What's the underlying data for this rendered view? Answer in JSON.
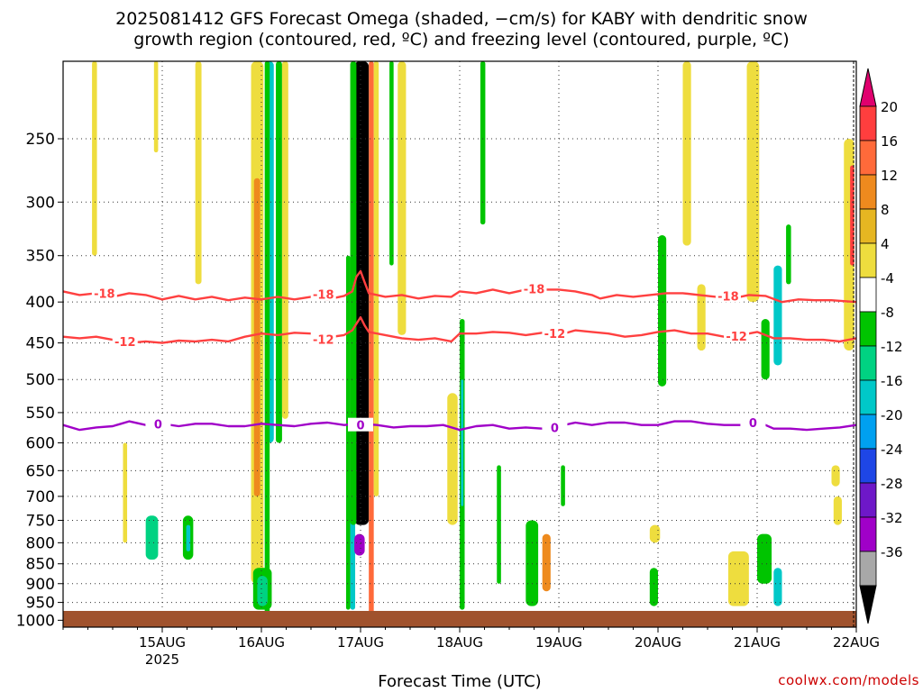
{
  "title_line1": "2025081412 GFS Forecast Omega (shaded, −cm/s) for KABY with dendritic snow",
  "title_line2": "growth region (contoured, red, ºC) and freezing level (contoured, purple, ºC)",
  "credit": "coolwx.com/models",
  "chart_data": {
    "type": "heatmap",
    "xlabel": "Forecast Time (UTC)",
    "ylabel": "",
    "x_ticks": [
      {
        "label": "15AUG",
        "sub": "2025",
        "hour": 12
      },
      {
        "label": "16AUG",
        "sub": "",
        "hour": 36
      },
      {
        "label": "17AUG",
        "sub": "",
        "hour": 60
      },
      {
        "label": "18AUG",
        "sub": "",
        "hour": 84
      },
      {
        "label": "19AUG",
        "sub": "",
        "hour": 108
      },
      {
        "label": "20AUG",
        "sub": "",
        "hour": 132
      },
      {
        "label": "21AUG",
        "sub": "",
        "hour": 156
      },
      {
        "label": "22AUG",
        "sub": "",
        "hour": 180
      }
    ],
    "x_range_hours": [
      -12,
      180
    ],
    "y_axis": "pressure (hPa), inverted",
    "y_ticks": [
      250,
      300,
      350,
      400,
      450,
      500,
      550,
      600,
      650,
      700,
      750,
      800,
      850,
      900,
      950,
      1000
    ],
    "y_range_hpa": [
      1020,
      200
    ],
    "grid": true,
    "colorbar": {
      "labels": [
        20,
        16,
        12,
        8,
        4,
        -4,
        -8,
        -12,
        -16,
        -20,
        -24,
        -28,
        -32,
        -36
      ],
      "colors": [
        "#e8a9c6",
        "#ff3e3e",
        "#ff6a3a",
        "#ee8a1e",
        "#e6b622",
        "#eedd3e",
        "#ffffff",
        "#00c400",
        "#00d282",
        "#00c8c8",
        "#00a0f0",
        "#1e46e6",
        "#6e18c8",
        "#a000c8",
        "#a8a8a8",
        "#000000"
      ]
    },
    "contours": [
      {
        "name": "-18",
        "color": "#ff4040",
        "points": [
          [
            -12,
            388
          ],
          [
            -8,
            392
          ],
          [
            -4,
            390
          ],
          [
            0,
            394
          ],
          [
            4,
            390
          ],
          [
            8,
            392
          ],
          [
            12,
            397
          ],
          [
            16,
            393
          ],
          [
            20,
            397
          ],
          [
            24,
            394
          ],
          [
            28,
            398
          ],
          [
            32,
            395
          ],
          [
            36,
            397
          ],
          [
            40,
            394
          ],
          [
            44,
            397
          ],
          [
            48,
            394
          ],
          [
            52,
            397
          ],
          [
            56,
            393
          ],
          [
            58,
            388
          ],
          [
            59,
            372
          ],
          [
            60,
            366
          ],
          [
            61,
            378
          ],
          [
            62,
            390
          ],
          [
            66,
            394
          ],
          [
            70,
            392
          ],
          [
            74,
            396
          ],
          [
            78,
            393
          ],
          [
            82,
            394
          ],
          [
            84,
            388
          ],
          [
            88,
            390
          ],
          [
            92,
            386
          ],
          [
            96,
            390
          ],
          [
            100,
            386
          ],
          [
            104,
            386
          ],
          [
            108,
            386
          ],
          [
            112,
            388
          ],
          [
            116,
            392
          ],
          [
            118,
            396
          ],
          [
            122,
            392
          ],
          [
            126,
            394
          ],
          [
            130,
            392
          ],
          [
            134,
            390
          ],
          [
            138,
            390
          ],
          [
            142,
            392
          ],
          [
            146,
            394
          ],
          [
            150,
            396
          ],
          [
            154,
            392
          ],
          [
            158,
            393
          ],
          [
            162,
            400
          ],
          [
            166,
            397
          ],
          [
            170,
            398
          ],
          [
            174,
            398
          ],
          [
            180,
            400
          ]
        ],
        "labels": [
          {
            "text": "-18",
            "x": -2,
            "p": 390
          },
          {
            "text": "-18",
            "x": 51,
            "p": 391
          },
          {
            "text": "-18",
            "x": 102,
            "p": 385
          },
          {
            "text": "-18",
            "x": 149,
            "p": 393
          }
        ]
      },
      {
        "name": "-12",
        "color": "#ff4040",
        "points": [
          [
            -12,
            442
          ],
          [
            -8,
            444
          ],
          [
            -4,
            442
          ],
          [
            0,
            446
          ],
          [
            4,
            450
          ],
          [
            8,
            448
          ],
          [
            12,
            450
          ],
          [
            16,
            447
          ],
          [
            20,
            448
          ],
          [
            24,
            446
          ],
          [
            28,
            448
          ],
          [
            32,
            442
          ],
          [
            36,
            438
          ],
          [
            40,
            440
          ],
          [
            44,
            437
          ],
          [
            48,
            438
          ],
          [
            52,
            443
          ],
          [
            56,
            440
          ],
          [
            58,
            434
          ],
          [
            60,
            418
          ],
          [
            61,
            428
          ],
          [
            62,
            436
          ],
          [
            66,
            440
          ],
          [
            70,
            444
          ],
          [
            74,
            446
          ],
          [
            78,
            444
          ],
          [
            82,
            448
          ],
          [
            84,
            438
          ],
          [
            88,
            438
          ],
          [
            92,
            436
          ],
          [
            96,
            437
          ],
          [
            100,
            440
          ],
          [
            104,
            437
          ],
          [
            108,
            440
          ],
          [
            112,
            434
          ],
          [
            116,
            436
          ],
          [
            120,
            438
          ],
          [
            124,
            442
          ],
          [
            128,
            440
          ],
          [
            132,
            436
          ],
          [
            136,
            434
          ],
          [
            140,
            438
          ],
          [
            144,
            438
          ],
          [
            148,
            442
          ],
          [
            152,
            440
          ],
          [
            156,
            436
          ],
          [
            160,
            444
          ],
          [
            164,
            444
          ],
          [
            168,
            446
          ],
          [
            172,
            446
          ],
          [
            176,
            448
          ],
          [
            180,
            444
          ]
        ],
        "labels": [
          {
            "text": "-12",
            "x": 3,
            "p": 448
          },
          {
            "text": "-12",
            "x": 51,
            "p": 445
          },
          {
            "text": "-12",
            "x": 107,
            "p": 438
          },
          {
            "text": "-12",
            "x": 151,
            "p": 441
          }
        ]
      },
      {
        "name": "0",
        "color": "#a000c8",
        "points": [
          [
            -12,
            570
          ],
          [
            -8,
            578
          ],
          [
            -4,
            574
          ],
          [
            0,
            572
          ],
          [
            2,
            568
          ],
          [
            4,
            564
          ],
          [
            8,
            570
          ],
          [
            12,
            568
          ],
          [
            16,
            572
          ],
          [
            20,
            568
          ],
          [
            24,
            568
          ],
          [
            28,
            572
          ],
          [
            32,
            572
          ],
          [
            36,
            568
          ],
          [
            40,
            570
          ],
          [
            44,
            572
          ],
          [
            48,
            568
          ],
          [
            52,
            566
          ],
          [
            56,
            570
          ],
          [
            60,
            568
          ],
          [
            64,
            570
          ],
          [
            68,
            574
          ],
          [
            72,
            572
          ],
          [
            76,
            572
          ],
          [
            80,
            570
          ],
          [
            84,
            578
          ],
          [
            88,
            572
          ],
          [
            92,
            570
          ],
          [
            96,
            576
          ],
          [
            100,
            574
          ],
          [
            104,
            576
          ],
          [
            108,
            572
          ],
          [
            112,
            566
          ],
          [
            116,
            570
          ],
          [
            120,
            566
          ],
          [
            124,
            566
          ],
          [
            128,
            570
          ],
          [
            132,
            570
          ],
          [
            136,
            564
          ],
          [
            140,
            564
          ],
          [
            144,
            568
          ],
          [
            148,
            570
          ],
          [
            152,
            570
          ],
          [
            156,
            564
          ],
          [
            160,
            576
          ],
          [
            164,
            576
          ],
          [
            168,
            578
          ],
          [
            172,
            576
          ],
          [
            176,
            574
          ],
          [
            180,
            570
          ]
        ],
        "labels": [
          {
            "text": "0",
            "x": 11,
            "p": 568
          },
          {
            "text": "0",
            "x": 60,
            "p": 570
          },
          {
            "text": "0",
            "x": 107,
            "p": 574
          },
          {
            "text": "0",
            "x": 155,
            "p": 566
          }
        ]
      }
    ],
    "shaded_regions": [
      {
        "x": 58.5,
        "w": 3.5,
        "p1": 200,
        "p2": 760,
        "c": "#000000"
      },
      {
        "x": 57.5,
        "w": 1.2,
        "p1": 700,
        "p2": 970,
        "c": "#00c8c8"
      },
      {
        "x": 58.5,
        "w": 2.5,
        "p1": 780,
        "p2": 830,
        "c": "#a000c8"
      },
      {
        "x": 57.5,
        "w": 1.5,
        "p1": 200,
        "p2": 760,
        "c": "#00c400"
      },
      {
        "x": 62.0,
        "w": 1.2,
        "p1": 200,
        "p2": 980,
        "c": "#ff6a3a"
      },
      {
        "x": 63.2,
        "w": 1.2,
        "p1": 200,
        "p2": 700,
        "c": "#eedd3e"
      },
      {
        "x": 56.5,
        "w": 1.0,
        "p1": 350,
        "p2": 970,
        "c": "#00c400"
      },
      {
        "x": 33.5,
        "w": 3.0,
        "p1": 200,
        "p2": 900,
        "c": "#eedd3e"
      },
      {
        "x": 34.2,
        "w": 1.5,
        "p1": 280,
        "p2": 700,
        "c": "#ee8a1e"
      },
      {
        "x": 37.0,
        "w": 2.0,
        "p1": 200,
        "p2": 600,
        "c": "#00c8c8"
      },
      {
        "x": 36.8,
        "w": 1.2,
        "p1": 200,
        "p2": 980,
        "c": "#00c400"
      },
      {
        "x": 39.5,
        "w": 1.5,
        "p1": 200,
        "p2": 600,
        "c": "#00c400"
      },
      {
        "x": 41.0,
        "w": 1.5,
        "p1": 200,
        "p2": 560,
        "c": "#eedd3e"
      },
      {
        "x": 34.0,
        "w": 4.5,
        "p1": 860,
        "p2": 970,
        "c": "#00c400"
      },
      {
        "x": 35.0,
        "w": 2.5,
        "p1": 880,
        "p2": 960,
        "c": "#00d282"
      },
      {
        "x": 20.0,
        "w": 1.5,
        "p1": 200,
        "p2": 380,
        "c": "#eedd3e"
      },
      {
        "x": -5.0,
        "w": 1.2,
        "p1": 200,
        "p2": 350,
        "c": "#eedd3e"
      },
      {
        "x": 10.0,
        "w": 1.0,
        "p1": 200,
        "p2": 260,
        "c": "#eedd3e"
      },
      {
        "x": 17.0,
        "w": 2.5,
        "p1": 740,
        "p2": 840,
        "c": "#00c400"
      },
      {
        "x": 17.8,
        "w": 1.0,
        "p1": 760,
        "p2": 820,
        "c": "#00c8c8"
      },
      {
        "x": 69.0,
        "w": 2.0,
        "p1": 200,
        "p2": 440,
        "c": "#eedd3e"
      },
      {
        "x": 67.0,
        "w": 1.0,
        "p1": 200,
        "p2": 360,
        "c": "#00c400"
      },
      {
        "x": 81.0,
        "w": 2.5,
        "p1": 520,
        "p2": 760,
        "c": "#eedd3e"
      },
      {
        "x": 84.0,
        "w": 1.2,
        "p1": 420,
        "p2": 970,
        "c": "#00c400"
      },
      {
        "x": 84.3,
        "w": 0.6,
        "p1": 500,
        "p2": 720,
        "c": "#00c8c8"
      },
      {
        "x": 89.0,
        "w": 1.2,
        "p1": 200,
        "p2": 320,
        "c": "#00c400"
      },
      {
        "x": 100.0,
        "w": 3.0,
        "p1": 750,
        "p2": 960,
        "c": "#00c400"
      },
      {
        "x": 104.0,
        "w": 2.0,
        "p1": 780,
        "p2": 920,
        "c": "#ee8a1e"
      },
      {
        "x": 108.5,
        "w": 1.0,
        "p1": 640,
        "p2": 720,
        "c": "#00c400"
      },
      {
        "x": 132.0,
        "w": 2.0,
        "p1": 330,
        "p2": 510,
        "c": "#00c400"
      },
      {
        "x": 130.0,
        "w": 2.5,
        "p1": 760,
        "p2": 800,
        "c": "#eedd3e"
      },
      {
        "x": 130.0,
        "w": 2.0,
        "p1": 860,
        "p2": 960,
        "c": "#00c400"
      },
      {
        "x": 141.5,
        "w": 2.0,
        "p1": 380,
        "p2": 460,
        "c": "#eedd3e"
      },
      {
        "x": 138.0,
        "w": 2.0,
        "p1": 200,
        "p2": 340,
        "c": "#eedd3e"
      },
      {
        "x": 149.0,
        "w": 5.0,
        "p1": 820,
        "p2": 960,
        "c": "#eedd3e"
      },
      {
        "x": 156.0,
        "w": 3.5,
        "p1": 780,
        "p2": 900,
        "c": "#00c400"
      },
      {
        "x": 160.0,
        "w": 2.0,
        "p1": 360,
        "p2": 480,
        "c": "#00c8c8"
      },
      {
        "x": 157.0,
        "w": 2.0,
        "p1": 420,
        "p2": 500,
        "c": "#00c400"
      },
      {
        "x": 160.0,
        "w": 2.0,
        "p1": 860,
        "p2": 960,
        "c": "#00c8c8"
      },
      {
        "x": 153.5,
        "w": 3.0,
        "p1": 200,
        "p2": 400,
        "c": "#eedd3e"
      },
      {
        "x": 174.5,
        "w": 2.0,
        "p1": 700,
        "p2": 760,
        "c": "#eedd3e"
      },
      {
        "x": 177.0,
        "w": 2.5,
        "p1": 250,
        "p2": 460,
        "c": "#eedd3e"
      },
      {
        "x": 178.5,
        "w": 1.0,
        "p1": 270,
        "p2": 360,
        "c": "#ff3e3e"
      },
      {
        "x": 163.0,
        "w": 1.2,
        "p1": 320,
        "p2": 380,
        "c": "#00c400"
      },
      {
        "x": 2.5,
        "w": 1.0,
        "p1": 600,
        "p2": 800,
        "c": "#eedd3e"
      },
      {
        "x": 8.0,
        "w": 3.0,
        "p1": 740,
        "p2": 840,
        "c": "#00d282"
      },
      {
        "x": 93.0,
        "w": 1.0,
        "p1": 640,
        "p2": 900,
        "c": "#00c400"
      },
      {
        "x": 174.0,
        "w": 2.0,
        "p1": 640,
        "p2": 680,
        "c": "#eedd3e"
      }
    ]
  }
}
